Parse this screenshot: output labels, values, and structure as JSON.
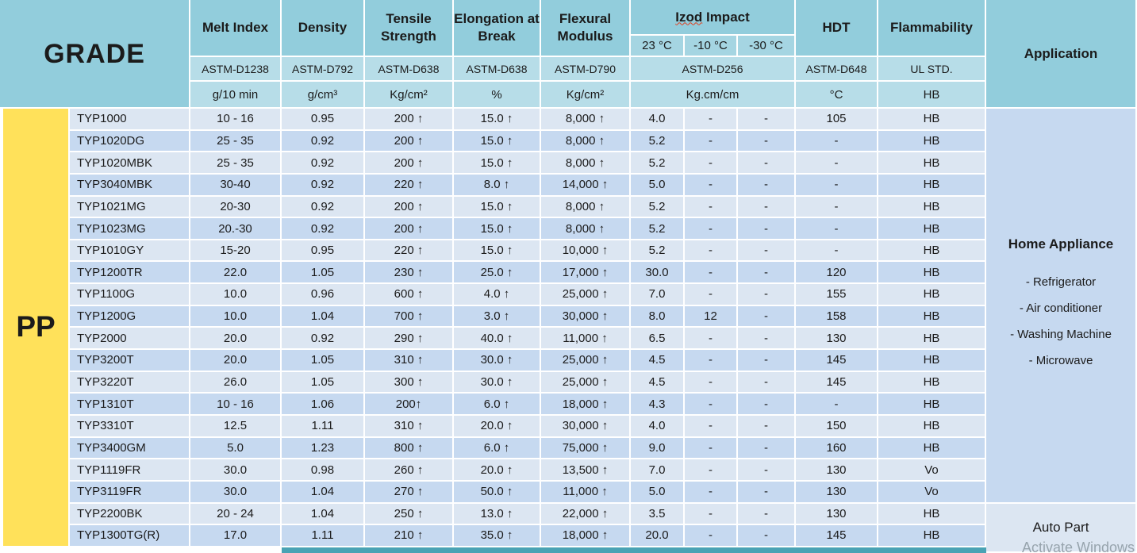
{
  "header": {
    "grade": "GRADE",
    "application": "Application",
    "columns": [
      {
        "key": "melt",
        "title": "Melt Index",
        "astm": "ASTM-D1238",
        "unit": "g/10 min"
      },
      {
        "key": "density",
        "title": "Density",
        "astm": "ASTM-D792",
        "unit": "g/cm³"
      },
      {
        "key": "tensile",
        "title": "Tensile Strength",
        "astm": "ASTM-D638",
        "unit": "Kg/cm²"
      },
      {
        "key": "elongation",
        "title": "Elongation at Break",
        "astm": "ASTM-D638",
        "unit": "%"
      },
      {
        "key": "flexural",
        "title": "Flexural Modulus",
        "astm": "ASTM-D790",
        "unit": "Kg/cm²"
      }
    ],
    "izod": {
      "word1": "Izod",
      "word2": "Impact",
      "temps": [
        "23 °C",
        "-10 °C",
        "-30 °C"
      ],
      "astm": "ASTM-D256",
      "unit": "Kg.cm/cm"
    },
    "hdt": {
      "title": "HDT",
      "astm": "ASTM-D648",
      "unit": "°C"
    },
    "flammability": {
      "title": "Flammability",
      "astm": "UL STD.",
      "unit": "HB"
    }
  },
  "material": "PP",
  "rows": [
    {
      "grade": "TYP1000",
      "melt": "10 - 16",
      "density": "0.95",
      "tensile": "200 ↑",
      "elongation": "15.0 ↑",
      "flexural": "8,000 ↑",
      "izod23": "4.0",
      "izod10": "-",
      "izod30": "-",
      "hdt": "105",
      "flamm": "HB"
    },
    {
      "grade": "TYP1020DG",
      "melt": "25 - 35",
      "density": "0.92",
      "tensile": "200 ↑",
      "elongation": "15.0 ↑",
      "flexural": "8,000 ↑",
      "izod23": "5.2",
      "izod10": "-",
      "izod30": "-",
      "hdt": "-",
      "flamm": "HB"
    },
    {
      "grade": "TYP1020MBK",
      "melt": "25 - 35",
      "density": "0.92",
      "tensile": "200 ↑",
      "elongation": "15.0 ↑",
      "flexural": "8,000 ↑",
      "izod23": "5.2",
      "izod10": "-",
      "izod30": "-",
      "hdt": "-",
      "flamm": "HB"
    },
    {
      "grade": "TYP3040MBK",
      "melt": "30-40",
      "density": "0.92",
      "tensile": "220 ↑",
      "elongation": "8.0 ↑",
      "flexural": "14,000 ↑",
      "izod23": "5.0",
      "izod10": "-",
      "izod30": "-",
      "hdt": "-",
      "flamm": "HB"
    },
    {
      "grade": "TYP1021MG",
      "melt": "20-30",
      "density": "0.92",
      "tensile": "200 ↑",
      "elongation": "15.0 ↑",
      "flexural": "8,000 ↑",
      "izod23": "5.2",
      "izod10": "-",
      "izod30": "-",
      "hdt": "-",
      "flamm": "HB"
    },
    {
      "grade": "TYP1023MG",
      "melt": "20.-30",
      "density": "0.92",
      "tensile": "200 ↑",
      "elongation": "15.0 ↑",
      "flexural": "8,000 ↑",
      "izod23": "5.2",
      "izod10": "-",
      "izod30": "-",
      "hdt": "-",
      "flamm": "HB"
    },
    {
      "grade": "TYP1010GY",
      "melt": "15-20",
      "density": "0.95",
      "tensile": "220 ↑",
      "elongation": "15.0 ↑",
      "flexural": "10,000 ↑",
      "izod23": "5.2",
      "izod10": "-",
      "izod30": "-",
      "hdt": "-",
      "flamm": "HB"
    },
    {
      "grade": "TYP1200TR",
      "melt": "22.0",
      "density": "1.05",
      "tensile": "230 ↑",
      "elongation": "25.0 ↑",
      "flexural": "17,000 ↑",
      "izod23": "30.0",
      "izod10": "-",
      "izod30": "-",
      "hdt": "120",
      "flamm": "HB"
    },
    {
      "grade": "TYP1100G",
      "melt": "10.0",
      "density": "0.96",
      "tensile": "600 ↑",
      "elongation": "4.0 ↑",
      "flexural": "25,000 ↑",
      "izod23": "7.0",
      "izod10": "-",
      "izod30": "-",
      "hdt": "155",
      "flamm": "HB"
    },
    {
      "grade": "TYP1200G",
      "melt": "10.0",
      "density": "1.04",
      "tensile": "700 ↑",
      "elongation": "3.0 ↑",
      "flexural": "30,000 ↑",
      "izod23": "8.0",
      "izod10": "12",
      "izod30": "-",
      "hdt": "158",
      "flamm": "HB"
    },
    {
      "grade": "TYP2000",
      "melt": "20.0",
      "density": "0.92",
      "tensile": "290 ↑",
      "elongation": "40.0 ↑",
      "flexural": "11,000 ↑",
      "izod23": "6.5",
      "izod10": "-",
      "izod30": "-",
      "hdt": "130",
      "flamm": "HB"
    },
    {
      "grade": "TYP3200T",
      "melt": "20.0",
      "density": "1.05",
      "tensile": "310 ↑",
      "elongation": "30.0 ↑",
      "flexural": "25,000 ↑",
      "izod23": "4.5",
      "izod10": "-",
      "izod30": "-",
      "hdt": "145",
      "flamm": "HB"
    },
    {
      "grade": "TYP3220T",
      "melt": "26.0",
      "density": "1.05",
      "tensile": "300 ↑",
      "elongation": "30.0 ↑",
      "flexural": "25,000 ↑",
      "izod23": "4.5",
      "izod10": "-",
      "izod30": "-",
      "hdt": "145",
      "flamm": "HB"
    },
    {
      "grade": "TYP1310T",
      "melt": "10 - 16",
      "density": "1.06",
      "tensile": "200↑",
      "elongation": "6.0 ↑",
      "flexural": "18,000 ↑",
      "izod23": "4.3",
      "izod10": "-",
      "izod30": "-",
      "hdt": "-",
      "flamm": "HB"
    },
    {
      "grade": "TYP3310T",
      "melt": "12.5",
      "density": "1.11",
      "tensile": "310 ↑",
      "elongation": "20.0 ↑",
      "flexural": "30,000 ↑",
      "izod23": "4.0",
      "izod10": "-",
      "izod30": "-",
      "hdt": "150",
      "flamm": "HB"
    },
    {
      "grade": "TYP3400GM",
      "melt": "5.0",
      "density": "1.23",
      "tensile": "800 ↑",
      "elongation": "6.0 ↑",
      "flexural": "75,000 ↑",
      "izod23": "9.0",
      "izod10": "-",
      "izod30": "-",
      "hdt": "160",
      "flamm": "HB"
    },
    {
      "grade": "TYP1119FR",
      "melt": "30.0",
      "density": "0.98",
      "tensile": "260 ↑",
      "elongation": "20.0 ↑",
      "flexural": "13,500 ↑",
      "izod23": "7.0",
      "izod10": "-",
      "izod30": "-",
      "hdt": "130",
      "flamm": "Vo"
    },
    {
      "grade": "TYP3119FR",
      "melt": "30.0",
      "density": "1.04",
      "tensile": "270 ↑",
      "elongation": "50.0 ↑",
      "flexural": "11,000 ↑",
      "izod23": "5.0",
      "izod10": "-",
      "izod30": "-",
      "hdt": "130",
      "flamm": "Vo"
    },
    {
      "grade": "TYP2200BK",
      "melt": "20 - 24",
      "density": "1.04",
      "tensile": "250 ↑",
      "elongation": "13.0 ↑",
      "flexural": "22,000 ↑",
      "izod23": "3.5",
      "izod10": "-",
      "izod30": "-",
      "hdt": "130",
      "flamm": "HB"
    },
    {
      "grade": "TYP1300TG(R)",
      "melt": "17.0",
      "density": "1.11",
      "tensile": "210 ↑",
      "elongation": "35.0 ↑",
      "flexural": "18,000 ↑",
      "izod23": "20.0",
      "izod10": "-",
      "izod30": "-",
      "hdt": "145",
      "flamm": "HB"
    }
  ],
  "applications": {
    "home": {
      "title": "Home Appliance",
      "items": [
        "- Refrigerator",
        "- Air conditioner",
        "- Washing Machine",
        "- Microwave"
      ]
    },
    "auto": {
      "title": "Auto Part"
    }
  },
  "watermark": "Activate Windows",
  "colors": {
    "header_teal": "#92cddc",
    "header_sub_teal": "#b7dde8",
    "temp_row_teal": "#a5d5e2",
    "material_yellow": "#ffe15a",
    "row_light": "#dce6f2",
    "row_dark": "#c6d9f0",
    "bottom_edge_teal": "#4aa3b4",
    "squiggle_red": "#e0401f"
  }
}
